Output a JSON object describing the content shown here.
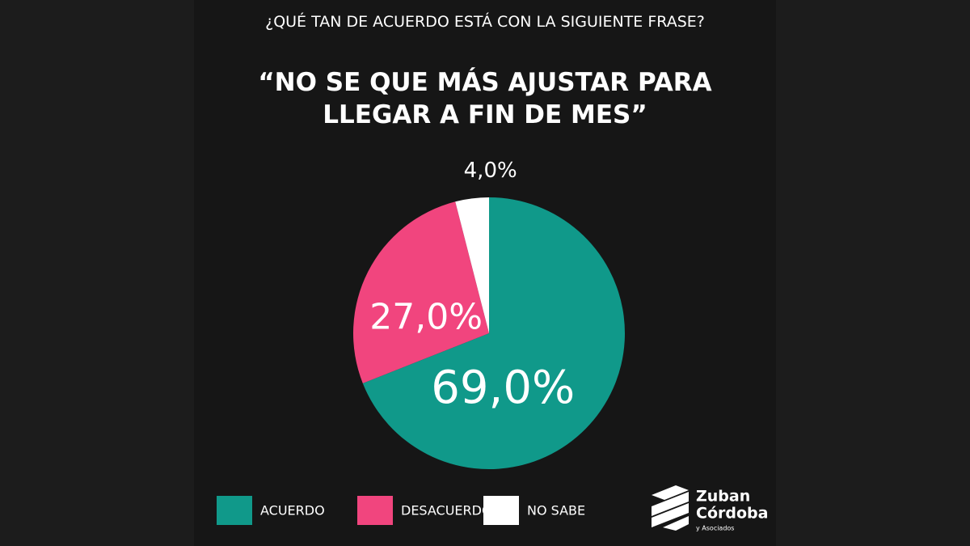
{
  "chart_data": {
    "type": "pie",
    "title": "¿QUÉ TAN DE ACUERDO ESTÁ CON LA SIGUIENTE FRASE?",
    "subtitle": "“NO SE QUE MÁS AJUSTAR PARA LLEGAR A FIN DE MES”",
    "categories": [
      "ACUERDO",
      "DESACUERDO",
      "NO SABE"
    ],
    "values": [
      69,
      27,
      4
    ],
    "value_labels": [
      "69,0%",
      "27,0%",
      "4,0%"
    ],
    "colors": [
      "#10998a",
      "#f1457e",
      "#ffffff"
    ],
    "legend": "bottom"
  },
  "logo": {
    "lines": [
      "Zuban",
      "Córdoba",
      "y Asociados"
    ]
  }
}
